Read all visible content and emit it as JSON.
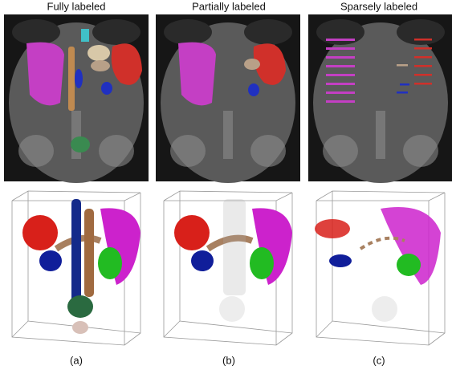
{
  "columns": [
    {
      "title": "Fully labeled",
      "caption": "(a)"
    },
    {
      "title": "Partially labeled",
      "caption": "(b)"
    },
    {
      "title": "Sparsely labeled",
      "caption": "(c)"
    }
  ]
}
